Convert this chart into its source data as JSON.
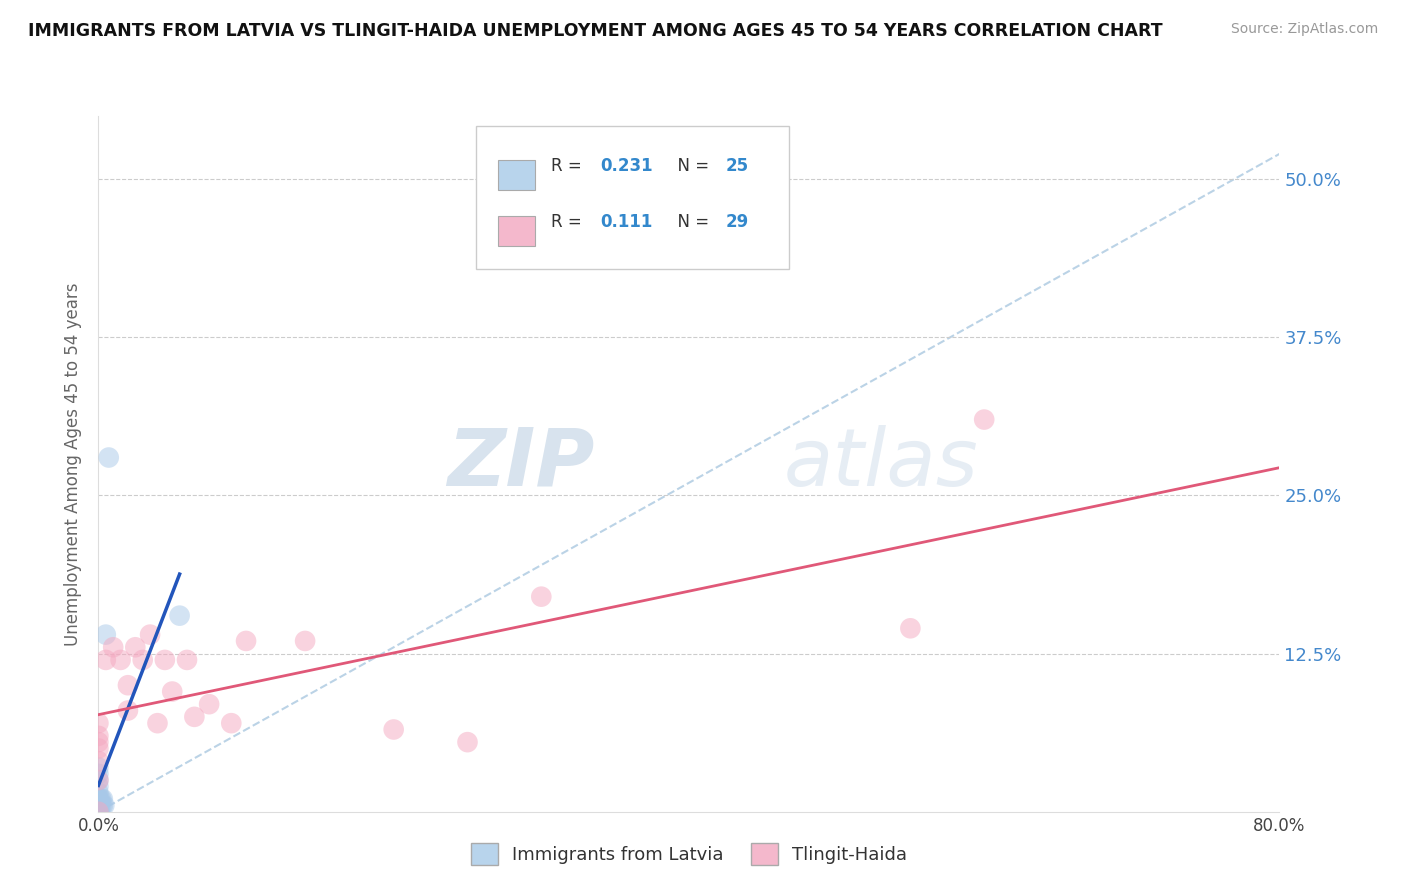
{
  "title": "IMMIGRANTS FROM LATVIA VS TLINGIT-HAIDA UNEMPLOYMENT AMONG AGES 45 TO 54 YEARS CORRELATION CHART",
  "source": "Source: ZipAtlas.com",
  "ylabel": "Unemployment Among Ages 45 to 54 years",
  "xlim": [
    0.0,
    0.8
  ],
  "ylim": [
    0.0,
    0.55
  ],
  "xticks": [
    0.0,
    0.2,
    0.4,
    0.6,
    0.8
  ],
  "xticklabels": [
    "0.0%",
    "",
    "",
    "",
    "80.0%"
  ],
  "yticks": [
    0.0,
    0.125,
    0.25,
    0.375,
    0.5
  ],
  "yticklabels_right": [
    "",
    "12.5%",
    "25.0%",
    "37.5%",
    "50.0%"
  ],
  "legend_series1_label": "Immigrants from Latvia",
  "legend_series2_label": "Tlingit-Haida",
  "r1": 0.231,
  "n1": 25,
  "r2": 0.111,
  "n2": 29,
  "series1_color": "#a8c8e8",
  "series2_color": "#f4a8c0",
  "series1_line_color": "#2255bb",
  "series2_line_color": "#e05878",
  "legend_box_color1": "#b8d4ec",
  "legend_box_color2": "#f4b8cc",
  "watermark_zip": "ZIP",
  "watermark_atlas": "atlas",
  "grid_color": "#cccccc",
  "background_color": "#ffffff",
  "scatter1_x": [
    0.0,
    0.0,
    0.0,
    0.0,
    0.0,
    0.0,
    0.0,
    0.0,
    0.0,
    0.0,
    0.0,
    0.0,
    0.0,
    0.0,
    0.001,
    0.001,
    0.001,
    0.002,
    0.002,
    0.003,
    0.003,
    0.004,
    0.005,
    0.007,
    0.055
  ],
  "scatter1_y": [
    0.0,
    0.0,
    0.0,
    0.0,
    0.0,
    0.0,
    0.005,
    0.01,
    0.01,
    0.015,
    0.02,
    0.025,
    0.03,
    0.035,
    0.0,
    0.005,
    0.01,
    0.005,
    0.01,
    0.005,
    0.01,
    0.005,
    0.14,
    0.28,
    0.155
  ],
  "scatter2_x": [
    0.0,
    0.0,
    0.0,
    0.0,
    0.0,
    0.0,
    0.0,
    0.005,
    0.01,
    0.015,
    0.02,
    0.02,
    0.025,
    0.03,
    0.035,
    0.04,
    0.045,
    0.05,
    0.06,
    0.065,
    0.075,
    0.09,
    0.1,
    0.14,
    0.2,
    0.25,
    0.3,
    0.55,
    0.6
  ],
  "scatter2_y": [
    0.0,
    0.025,
    0.04,
    0.05,
    0.055,
    0.06,
    0.07,
    0.12,
    0.13,
    0.12,
    0.08,
    0.1,
    0.13,
    0.12,
    0.14,
    0.07,
    0.12,
    0.095,
    0.12,
    0.075,
    0.085,
    0.07,
    0.135,
    0.135,
    0.065,
    0.055,
    0.17,
    0.145,
    0.31
  ],
  "dot_size": 220,
  "dot_alpha": 0.5
}
